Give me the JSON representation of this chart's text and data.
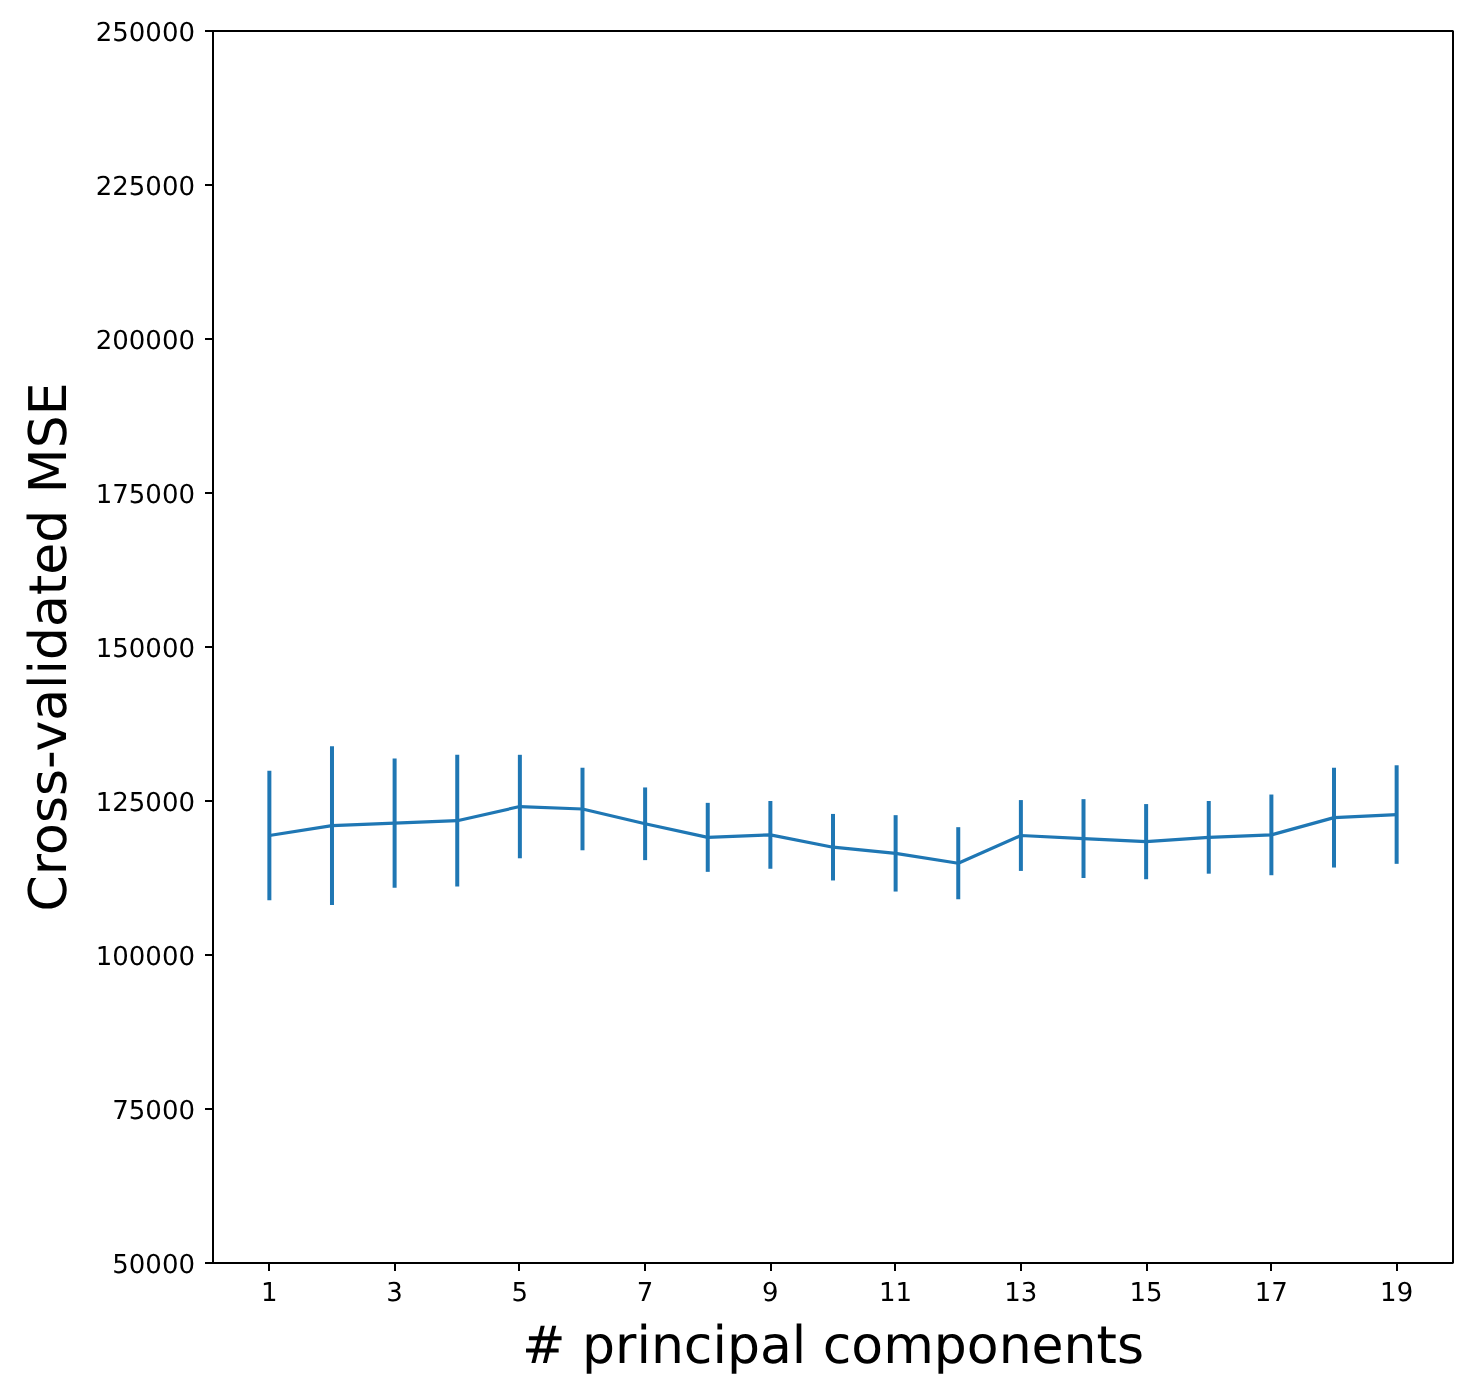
{
  "chart_data": {
    "type": "line",
    "xlabel": "# principal components",
    "ylabel": "Cross-validated MSE",
    "x": [
      1,
      2,
      3,
      4,
      5,
      6,
      7,
      8,
      9,
      10,
      11,
      12,
      13,
      14,
      15,
      16,
      17,
      18,
      19
    ],
    "series": [
      {
        "color": "#1f77b4",
        "values": [
          119400,
          121000,
          121400,
          121800,
          124100,
          123700,
          121300,
          119100,
          119500,
          117500,
          116500,
          114900,
          119400,
          118900,
          118400,
          119100,
          119500,
          122300,
          122800
        ],
        "errors": [
          10500,
          12900,
          10500,
          10700,
          8400,
          6700,
          5900,
          5600,
          5500,
          5400,
          6200,
          5850,
          5750,
          6400,
          6100,
          5900,
          6550,
          8100,
          8000
        ]
      }
    ],
    "xlim": [
      0.1,
      19.9
    ],
    "xticks": [
      1,
      3,
      5,
      7,
      9,
      11,
      13,
      15,
      17,
      19
    ],
    "ylim": [
      50000,
      250000
    ],
    "yticks": [
      50000,
      75000,
      100000,
      125000,
      150000,
      175000,
      200000,
      225000,
      250000
    ],
    "grid": false,
    "marker": "none",
    "line_style": "solid"
  }
}
